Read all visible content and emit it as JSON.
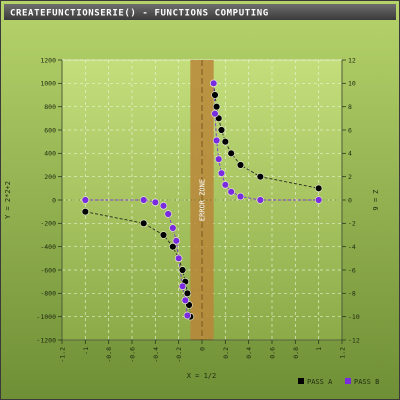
{
  "header": {
    "title": "CREATEFUNCTIONSERIE() - FUNCTIONS COMPUTING"
  },
  "chart_data": {
    "type": "scatter",
    "title": "CREATEFUNCTIONSERIE() - FUNCTIONS COMPUTING",
    "xlabel": "X = 1/2",
    "ylabel": "Y = 2*2+2",
    "y2label": "Z = 6",
    "xlim": [
      -1.2,
      1.2
    ],
    "ylim": [
      -1200,
      1200
    ],
    "y2lim": [
      -12,
      12
    ],
    "x_ticks": [
      "-1.2",
      "-1",
      "-0.8",
      "-0.6",
      "-0.4",
      "-0.2",
      "0",
      "0.2",
      "0.4",
      "0.6",
      "0.8",
      "1",
      "1.2"
    ],
    "y_ticks": [
      "-1200",
      "-1000",
      "-800",
      "-600",
      "-400",
      "-200",
      "0",
      "200",
      "400",
      "600",
      "800",
      "1000",
      "1200"
    ],
    "y2_ticks": [
      "-12",
      "-10",
      "-8",
      "-6",
      "-4",
      "-2",
      "0",
      "2",
      "4",
      "6",
      "8",
      "10",
      "12"
    ],
    "grid": true,
    "legend_position": "bottom-right",
    "error_zone": {
      "label": "ERROR ZONE",
      "x_range": [
        -0.1,
        0.1
      ],
      "color": "#b8863a"
    },
    "series": [
      {
        "name": "PASS A",
        "color": "#000000",
        "axis": "y",
        "points": [
          [
            -1.0,
            -100
          ],
          [
            -0.5,
            -200
          ],
          [
            -0.33,
            -300
          ],
          [
            -0.25,
            -400
          ],
          [
            -0.2,
            -500
          ],
          [
            -0.167,
            -600
          ],
          [
            -0.143,
            -700
          ],
          [
            -0.125,
            -800
          ],
          [
            -0.111,
            -900
          ],
          [
            -0.1,
            -1000
          ],
          [
            0.1,
            1000
          ],
          [
            0.111,
            900
          ],
          [
            0.125,
            800
          ],
          [
            0.143,
            700
          ],
          [
            0.167,
            600
          ],
          [
            0.2,
            500
          ],
          [
            0.25,
            400
          ],
          [
            0.33,
            300
          ],
          [
            0.5,
            200
          ],
          [
            1.0,
            100
          ]
        ]
      },
      {
        "name": "PASS B",
        "color": "#7a2be0",
        "axis": "y2",
        "points": [
          [
            -1.0,
            0
          ],
          [
            -0.5,
            0
          ],
          [
            -0.4,
            -0.2
          ],
          [
            -0.33,
            -0.5
          ],
          [
            -0.29,
            -1.2
          ],
          [
            -0.25,
            -2.4
          ],
          [
            -0.22,
            -3.5
          ],
          [
            -0.2,
            -5
          ],
          [
            -0.167,
            -7.4
          ],
          [
            -0.143,
            -8.6
          ],
          [
            -0.125,
            -9.9
          ],
          [
            0.1,
            10
          ],
          [
            0.111,
            7.4
          ],
          [
            0.125,
            5.1
          ],
          [
            0.143,
            3.5
          ],
          [
            0.167,
            2.3
          ],
          [
            0.2,
            1.3
          ],
          [
            0.25,
            0.7
          ],
          [
            0.33,
            0.3
          ],
          [
            0.5,
            0
          ],
          [
            1.0,
            0
          ]
        ]
      }
    ]
  }
}
